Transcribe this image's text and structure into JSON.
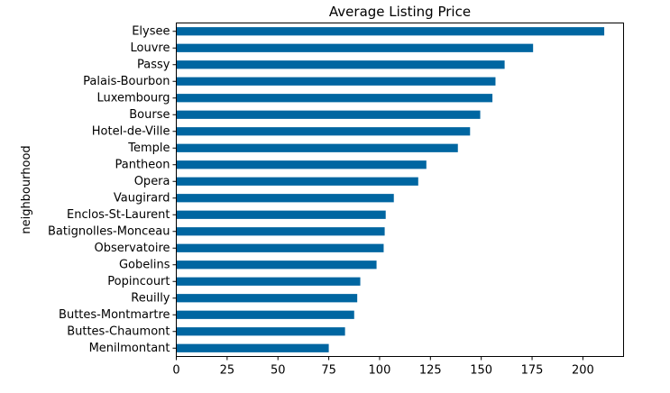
{
  "chart_data": {
    "type": "bar",
    "orientation": "horizontal",
    "title": "Average Listing Price",
    "xlabel": "",
    "ylabel": "neighbourhood",
    "xlim": [
      0,
      220
    ],
    "xticks": [
      0,
      25,
      50,
      75,
      100,
      125,
      150,
      175,
      200
    ],
    "grid": false,
    "bar_color": "#0066a1",
    "categories": [
      "Elysee",
      "Louvre",
      "Passy",
      "Palais-Bourbon",
      "Luxembourg",
      "Bourse",
      "Hotel-de-Ville",
      "Temple",
      "Pantheon",
      "Opera",
      "Vaugirard",
      "Enclos-St-Laurent",
      "Batignolles-Monceau",
      "Observatoire",
      "Gobelins",
      "Popincourt",
      "Reuilly",
      "Buttes-Montmartre",
      "Buttes-Chaumont",
      "Menilmontant"
    ],
    "values": [
      210.5,
      175.5,
      161.5,
      157,
      155.5,
      149.5,
      144.5,
      138.5,
      123,
      119,
      107,
      103,
      102.5,
      102,
      98.5,
      90.5,
      89,
      87.5,
      83,
      75
    ]
  }
}
